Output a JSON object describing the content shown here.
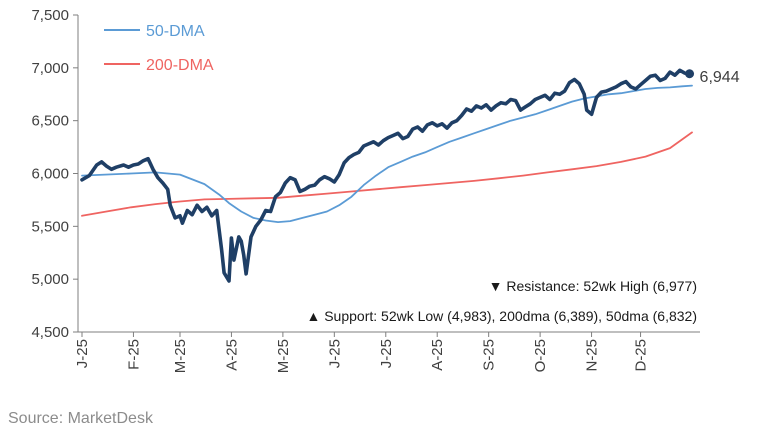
{
  "chart_data": {
    "type": "line",
    "title": "",
    "xlabel": "",
    "ylabel": "",
    "ylim": [
      4500,
      7500
    ],
    "yticks": [
      4500,
      5000,
      5500,
      6000,
      6500,
      7000,
      7500
    ],
    "ytick_labels": [
      "4,500",
      "5,000",
      "5,500",
      "6,000",
      "6,500",
      "7,000",
      "7,500"
    ],
    "xticks": [
      {
        "label": "J-25",
        "index": 0
      },
      {
        "label": "F-25",
        "index": 21
      },
      {
        "label": "M-25",
        "index": 40
      },
      {
        "label": "A-25",
        "index": 61
      },
      {
        "label": "M-25",
        "index": 82
      },
      {
        "label": "J-25",
        "index": 103
      },
      {
        "label": "J-25",
        "index": 124
      },
      {
        "label": "A-25",
        "index": 145
      },
      {
        "label": "S-25",
        "index": 166
      },
      {
        "label": "O-25",
        "index": 187
      },
      {
        "label": "N-25",
        "index": 208
      },
      {
        "label": "D-25",
        "index": 228
      }
    ],
    "x_count": 250,
    "grid": false,
    "legend_position": "top-left",
    "series": [
      {
        "name": "",
        "color": "#1f3f66",
        "role": "index",
        "points": [
          [
            0,
            5940
          ],
          [
            3,
            5980
          ],
          [
            6,
            6080
          ],
          [
            8,
            6110
          ],
          [
            10,
            6070
          ],
          [
            12,
            6040
          ],
          [
            14,
            6060
          ],
          [
            17,
            6080
          ],
          [
            19,
            6060
          ],
          [
            21,
            6080
          ],
          [
            23,
            6090
          ],
          [
            25,
            6120
          ],
          [
            27,
            6140
          ],
          [
            29,
            6040
          ],
          [
            31,
            5960
          ],
          [
            33,
            5910
          ],
          [
            35,
            5850
          ],
          [
            36,
            5700
          ],
          [
            38,
            5580
          ],
          [
            40,
            5600
          ],
          [
            41,
            5530
          ],
          [
            43,
            5650
          ],
          [
            45,
            5610
          ],
          [
            47,
            5700
          ],
          [
            49,
            5640
          ],
          [
            51,
            5680
          ],
          [
            53,
            5600
          ],
          [
            55,
            5650
          ],
          [
            57,
            5280
          ],
          [
            58,
            5060
          ],
          [
            60,
            4983
          ],
          [
            61,
            5390
          ],
          [
            62,
            5180
          ],
          [
            64,
            5400
          ],
          [
            65,
            5360
          ],
          [
            66,
            5230
          ],
          [
            67,
            5050
          ],
          [
            69,
            5400
          ],
          [
            71,
            5500
          ],
          [
            73,
            5560
          ],
          [
            75,
            5650
          ],
          [
            77,
            5640
          ],
          [
            79,
            5780
          ],
          [
            81,
            5820
          ],
          [
            83,
            5910
          ],
          [
            85,
            5960
          ],
          [
            87,
            5940
          ],
          [
            89,
            5830
          ],
          [
            91,
            5850
          ],
          [
            93,
            5880
          ],
          [
            95,
            5890
          ],
          [
            97,
            5940
          ],
          [
            99,
            5970
          ],
          [
            101,
            5950
          ],
          [
            103,
            5920
          ],
          [
            105,
            5990
          ],
          [
            107,
            6100
          ],
          [
            109,
            6150
          ],
          [
            111,
            6180
          ],
          [
            113,
            6200
          ],
          [
            115,
            6260
          ],
          [
            117,
            6280
          ],
          [
            119,
            6300
          ],
          [
            121,
            6270
          ],
          [
            123,
            6310
          ],
          [
            125,
            6340
          ],
          [
            127,
            6360
          ],
          [
            129,
            6380
          ],
          [
            131,
            6330
          ],
          [
            133,
            6350
          ],
          [
            135,
            6420
          ],
          [
            137,
            6440
          ],
          [
            139,
            6400
          ],
          [
            141,
            6460
          ],
          [
            143,
            6480
          ],
          [
            145,
            6450
          ],
          [
            147,
            6470
          ],
          [
            149,
            6430
          ],
          [
            151,
            6480
          ],
          [
            153,
            6500
          ],
          [
            155,
            6550
          ],
          [
            157,
            6610
          ],
          [
            159,
            6590
          ],
          [
            161,
            6640
          ],
          [
            163,
            6620
          ],
          [
            165,
            6650
          ],
          [
            167,
            6600
          ],
          [
            169,
            6640
          ],
          [
            171,
            6670
          ],
          [
            173,
            6660
          ],
          [
            175,
            6700
          ],
          [
            177,
            6690
          ],
          [
            179,
            6600
          ],
          [
            181,
            6630
          ],
          [
            183,
            6660
          ],
          [
            185,
            6700
          ],
          [
            187,
            6720
          ],
          [
            189,
            6740
          ],
          [
            191,
            6700
          ],
          [
            193,
            6760
          ],
          [
            195,
            6750
          ],
          [
            197,
            6780
          ],
          [
            199,
            6860
          ],
          [
            201,
            6890
          ],
          [
            203,
            6850
          ],
          [
            205,
            6750
          ],
          [
            206,
            6600
          ],
          [
            208,
            6560
          ],
          [
            210,
            6720
          ],
          [
            212,
            6770
          ],
          [
            214,
            6780
          ],
          [
            216,
            6800
          ],
          [
            218,
            6820
          ],
          [
            220,
            6850
          ],
          [
            222,
            6870
          ],
          [
            224,
            6820
          ],
          [
            226,
            6800
          ],
          [
            228,
            6840
          ],
          [
            230,
            6880
          ],
          [
            232,
            6920
          ],
          [
            234,
            6930
          ],
          [
            236,
            6880
          ],
          [
            238,
            6900
          ],
          [
            240,
            6960
          ],
          [
            242,
            6930
          ],
          [
            244,
            6977
          ],
          [
            246,
            6950
          ],
          [
            248,
            6944
          ]
        ]
      },
      {
        "name": "50-DMA",
        "color": "#5b9bd5",
        "role": "ma50",
        "points": [
          [
            0,
            5980
          ],
          [
            20,
            6000
          ],
          [
            30,
            6010
          ],
          [
            40,
            5990
          ],
          [
            50,
            5900
          ],
          [
            56,
            5800
          ],
          [
            60,
            5720
          ],
          [
            65,
            5640
          ],
          [
            70,
            5580
          ],
          [
            75,
            5555
          ],
          [
            80,
            5540
          ],
          [
            85,
            5550
          ],
          [
            90,
            5580
          ],
          [
            95,
            5610
          ],
          [
            100,
            5640
          ],
          [
            105,
            5700
          ],
          [
            110,
            5780
          ],
          [
            115,
            5890
          ],
          [
            120,
            5980
          ],
          [
            125,
            6060
          ],
          [
            130,
            6110
          ],
          [
            135,
            6160
          ],
          [
            140,
            6200
          ],
          [
            145,
            6250
          ],
          [
            150,
            6300
          ],
          [
            155,
            6340
          ],
          [
            160,
            6380
          ],
          [
            165,
            6420
          ],
          [
            170,
            6460
          ],
          [
            175,
            6500
          ],
          [
            180,
            6530
          ],
          [
            185,
            6560
          ],
          [
            190,
            6600
          ],
          [
            195,
            6640
          ],
          [
            200,
            6680
          ],
          [
            205,
            6710
          ],
          [
            210,
            6730
          ],
          [
            215,
            6750
          ],
          [
            220,
            6760
          ],
          [
            225,
            6780
          ],
          [
            230,
            6800
          ],
          [
            235,
            6810
          ],
          [
            240,
            6815
          ],
          [
            245,
            6825
          ],
          [
            249,
            6832
          ]
        ]
      },
      {
        "name": "200-DMA",
        "color": "#ef6461",
        "role": "ma200",
        "points": [
          [
            0,
            5600
          ],
          [
            10,
            5640
          ],
          [
            20,
            5680
          ],
          [
            30,
            5710
          ],
          [
            40,
            5735
          ],
          [
            50,
            5755
          ],
          [
            60,
            5760
          ],
          [
            70,
            5765
          ],
          [
            80,
            5770
          ],
          [
            90,
            5790
          ],
          [
            100,
            5810
          ],
          [
            110,
            5830
          ],
          [
            120,
            5850
          ],
          [
            130,
            5870
          ],
          [
            140,
            5890
          ],
          [
            150,
            5910
          ],
          [
            160,
            5930
          ],
          [
            170,
            5955
          ],
          [
            180,
            5980
          ],
          [
            190,
            6010
          ],
          [
            200,
            6040
          ],
          [
            210,
            6070
          ],
          [
            220,
            6110
          ],
          [
            230,
            6160
          ],
          [
            240,
            6240
          ],
          [
            249,
            6389
          ]
        ]
      }
    ],
    "end_label": "6,944",
    "annotations": {
      "resistance": "▼ Resistance:  52wk High (6,977)",
      "support": "▲ Support:  52wk Low (4,983), 200dma (6,389), 50dma (6,832)"
    }
  },
  "source": "Source: MarketDesk"
}
